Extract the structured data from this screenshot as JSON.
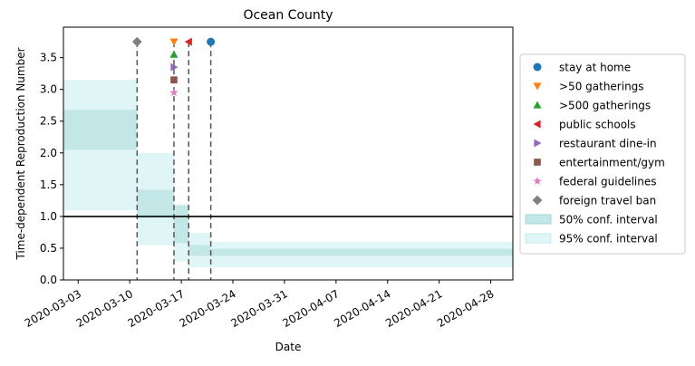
{
  "chart_data": {
    "type": "line",
    "title": "Ocean County",
    "xlabel": "Date",
    "ylabel": "Time-dependent Reproduction Number",
    "x_ticks": [
      "2020-03-03",
      "2020-03-10",
      "2020-03-17",
      "2020-03-24",
      "2020-03-31",
      "2020-04-07",
      "2020-04-14",
      "2020-04-21",
      "2020-04-28"
    ],
    "y_ticks": [
      "0.0",
      "0.5",
      "1.0",
      "1.5",
      "2.0",
      "2.5",
      "3.0",
      "3.5"
    ],
    "xlim": [
      "2020-03-01",
      "2020-05-01"
    ],
    "ylim": [
      0,
      3.98
    ],
    "reference_line_y": 1.0,
    "intervals": [
      {
        "start": "2020-03-01",
        "end": "2020-03-11",
        "q25": 2.05,
        "q75": 2.68,
        "q025": 1.1,
        "q975": 3.15
      },
      {
        "start": "2020-03-11",
        "end": "2020-03-16",
        "q25": 0.98,
        "q75": 1.42,
        "q025": 0.55,
        "q975": 2.0
      },
      {
        "start": "2020-03-16",
        "end": "2020-03-18",
        "q25": 0.58,
        "q75": 1.17,
        "q025": 0.29,
        "q975": 1.2
      },
      {
        "start": "2020-03-18",
        "end": "2020-03-21",
        "q25": 0.38,
        "q75": 0.55,
        "q025": 0.2,
        "q975": 0.74
      },
      {
        "start": "2020-03-21",
        "end": "2020-05-01",
        "q25": 0.38,
        "q75": 0.49,
        "q025": 0.2,
        "q975": 0.6
      }
    ],
    "interventions": [
      {
        "name": "stay at home",
        "date": "2020-03-21",
        "y": 3.75,
        "marker": "circle",
        "color": "#1f77b4"
      },
      {
        "name": ">50 gatherings",
        "date": "2020-03-16",
        "y": 3.75,
        "marker": "triangle-down",
        "color": "#ff7f0e"
      },
      {
        "name": ">500 gatherings",
        "date": "2020-03-16",
        "y": 3.55,
        "marker": "triangle-up",
        "color": "#2ca02c"
      },
      {
        "name": "public schools",
        "date": "2020-03-18",
        "y": 3.75,
        "marker": "triangle-left",
        "color": "#d62728"
      },
      {
        "name": "restaurant dine-in",
        "date": "2020-03-16",
        "y": 3.35,
        "marker": "triangle-right",
        "color": "#9467bd"
      },
      {
        "name": "entertainment/gym",
        "date": "2020-03-16",
        "y": 3.15,
        "marker": "square",
        "color": "#8c564b"
      },
      {
        "name": "federal guidelines",
        "date": "2020-03-16",
        "y": 2.95,
        "marker": "star",
        "color": "#e377c2"
      },
      {
        "name": "foreign travel ban",
        "date": "2020-03-11",
        "y": 3.75,
        "marker": "diamond",
        "color": "#7f7f7f"
      }
    ],
    "legend": {
      "placement": "right",
      "entries": [
        {
          "label": "stay at home",
          "marker": "circle",
          "color": "#1f77b4"
        },
        {
          "label": ">50 gatherings",
          "marker": "triangle-down",
          "color": "#ff7f0e"
        },
        {
          "label": ">500 gatherings",
          "marker": "triangle-up",
          "color": "#2ca02c"
        },
        {
          "label": "public schools",
          "marker": "triangle-left",
          "color": "#d62728"
        },
        {
          "label": "restaurant dine-in",
          "marker": "triangle-right",
          "color": "#9467bd"
        },
        {
          "label": "entertainment/gym",
          "marker": "square",
          "color": "#8c564b"
        },
        {
          "label": "federal guidelines",
          "marker": "star",
          "color": "#e377c2"
        },
        {
          "label": "foreign travel ban",
          "marker": "diamond",
          "color": "#7f7f7f"
        },
        {
          "label": "50% conf. interval",
          "marker": "patch",
          "color": "#c3e7e7"
        },
        {
          "label": "95% conf. interval",
          "marker": "patch",
          "color": "#e0f5f5"
        }
      ]
    },
    "colors": {
      "ci50": "#c3e7e7",
      "ci95": "#e0f5f5",
      "vline": "#555555",
      "refline": "#000000"
    },
    "grid": false
  }
}
